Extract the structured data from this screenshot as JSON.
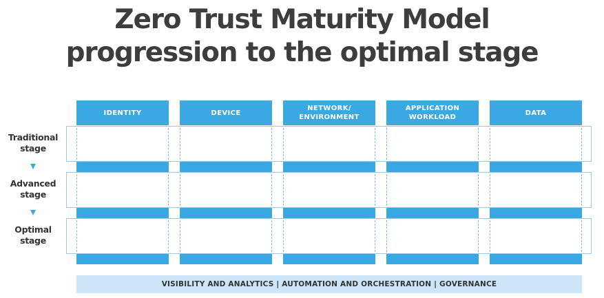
{
  "title": {
    "line1": "Zero Trust Maturity Model",
    "line2": "progression to the optimal stage"
  },
  "columns": [
    {
      "label": "IDENTITY"
    },
    {
      "label": "DEVICE"
    },
    {
      "label": "NETWORK/\nENVIRONMENT"
    },
    {
      "label": "APPLICATION\nWORKLOAD"
    },
    {
      "label": "DATA"
    }
  ],
  "stages": [
    {
      "label": "Traditional\nstage"
    },
    {
      "label": "Advanced\nstage"
    },
    {
      "label": "Optimal\nstage"
    }
  ],
  "footer": "VISIBILITY AND ANALYTICS  |  AUTOMATION AND ORCHESTRATION  |  GOVERNANCE",
  "colors": {
    "accent_blue": "#3aa9e3",
    "footer_bg": "#cde6f7",
    "title_text": "#3d3d3d"
  }
}
